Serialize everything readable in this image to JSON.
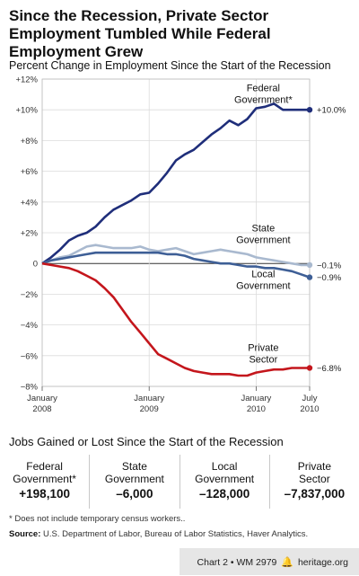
{
  "title": "Since the Recession, Private Sector Employment Tumbled While Federal Employment Grew",
  "subtitle": "Percent Change in Employment Since the Start of the Recession",
  "chart_data": {
    "type": "line",
    "title": "Percent Change in Employment Since the Start of the Recession",
    "xlabel": "",
    "ylabel": "",
    "ylim": [
      -8,
      12
    ],
    "yticks": [
      "+12%",
      "+10%",
      "+8%",
      "+6%",
      "+4%",
      "+2%",
      "0",
      "−2%",
      "−4%",
      "−6%",
      "−8%"
    ],
    "ytick_values": [
      12,
      10,
      8,
      6,
      4,
      2,
      0,
      -2,
      -4,
      -6,
      -8
    ],
    "xticks": [
      {
        "l1": "January",
        "l2": "2008",
        "x": 0
      },
      {
        "l1": "January",
        "l2": "2009",
        "x": 12
      },
      {
        "l1": "January",
        "l2": "2010",
        "x": 24
      },
      {
        "l1": "July",
        "l2": "2010",
        "x": 30
      }
    ],
    "x": [
      0,
      1,
      2,
      3,
      4,
      5,
      6,
      7,
      8,
      9,
      10,
      11,
      12,
      13,
      14,
      15,
      16,
      17,
      18,
      19,
      20,
      21,
      22,
      23,
      24,
      25,
      26,
      27,
      28,
      29,
      30
    ],
    "grid": true,
    "series": [
      {
        "name": "Federal Government*",
        "color": "#1f2e7a",
        "endlabel": "+10.0%",
        "values": [
          0,
          0.4,
          0.9,
          1.5,
          1.8,
          2.0,
          2.4,
          3.0,
          3.5,
          3.8,
          4.1,
          4.5,
          4.6,
          5.2,
          5.9,
          6.7,
          7.1,
          7.4,
          7.9,
          8.4,
          8.8,
          9.3,
          9.0,
          9.4,
          10.1,
          10.2,
          10.4,
          10.0,
          10.0,
          10.0,
          10.0
        ]
      },
      {
        "name": "State Government",
        "color": "#a9b9cf",
        "endlabel": "−0.1%",
        "values": [
          0,
          0.2,
          0.4,
          0.5,
          0.8,
          1.1,
          1.2,
          1.1,
          1.0,
          1.0,
          1.0,
          1.1,
          0.9,
          0.8,
          0.9,
          1.0,
          0.8,
          0.6,
          0.7,
          0.8,
          0.9,
          0.8,
          0.7,
          0.6,
          0.4,
          0.3,
          0.2,
          0.1,
          0.0,
          -0.1,
          -0.1
        ]
      },
      {
        "name": "Local Government",
        "color": "#3e5f96",
        "endlabel": "−0.9%",
        "values": [
          0,
          0.2,
          0.3,
          0.4,
          0.5,
          0.6,
          0.7,
          0.7,
          0.7,
          0.7,
          0.7,
          0.7,
          0.7,
          0.7,
          0.6,
          0.6,
          0.5,
          0.3,
          0.2,
          0.1,
          0.0,
          0.0,
          -0.1,
          -0.2,
          -0.2,
          -0.3,
          -0.3,
          -0.4,
          -0.5,
          -0.7,
          -0.9
        ]
      },
      {
        "name": "Private Sector",
        "color": "#c4161c",
        "endlabel": "−6.8%",
        "values": [
          0,
          -0.1,
          -0.2,
          -0.3,
          -0.5,
          -0.8,
          -1.1,
          -1.6,
          -2.2,
          -3.0,
          -3.8,
          -4.5,
          -5.2,
          -5.9,
          -6.2,
          -6.5,
          -6.8,
          -7.0,
          -7.1,
          -7.2,
          -7.2,
          -7.2,
          -7.3,
          -7.3,
          -7.1,
          -7.0,
          -6.9,
          -6.9,
          -6.8,
          -6.8,
          -6.8
        ]
      }
    ],
    "annotations": [
      {
        "lines": [
          "Federal",
          "Government*"
        ],
        "x": 24.8,
        "y": 11.2
      },
      {
        "lines": [
          "State",
          "Government"
        ],
        "x": 24.8,
        "y": 2.1
      },
      {
        "lines": [
          "Local",
          "Government"
        ],
        "x": 24.8,
        "y": -0.9
      },
      {
        "lines": [
          "Private",
          "Sector"
        ],
        "x": 24.8,
        "y": -5.7
      }
    ]
  },
  "jobs": {
    "title": "Jobs Gained or Lost Since the Start of the Recession",
    "columns": [
      {
        "name1": "Federal",
        "name2": "Government*",
        "value": "+198,100"
      },
      {
        "name1": "State",
        "name2": "Government",
        "value": "–6,000"
      },
      {
        "name1": "Local",
        "name2": "Government",
        "value": "–128,000"
      },
      {
        "name1": "Private",
        "name2": "Sector",
        "value": "–7,837,000"
      }
    ]
  },
  "footnote": "* Does not include temporary census workers..",
  "source_label": "Source:",
  "source_text": "U.S. Department of Labor, Bureau of Labor Statistics, Haver Analytics.",
  "credit": {
    "chart": "Chart 2 • WM 2979",
    "site": "heritage.org"
  }
}
